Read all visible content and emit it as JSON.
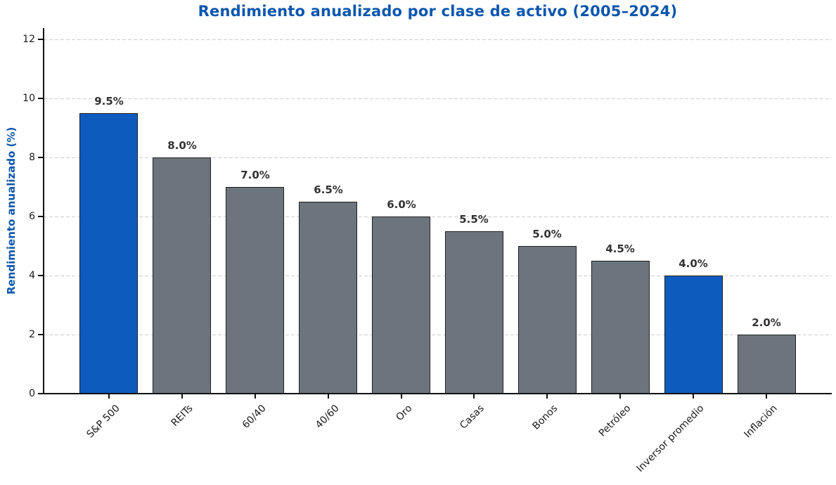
{
  "page": {
    "background": "#ffffff"
  },
  "chart_data": {
    "type": "bar",
    "title": "Rendimiento anualizado por clase de activo (2005–2024)",
    "ylabel": "Rendimiento anualizado (%)",
    "xlabel": "",
    "categories": [
      "S&P 500",
      "REITs",
      "60/40",
      "40/60",
      "Oro",
      "Casas",
      "Bonos",
      "Petróleo",
      "Inversor promedio",
      "Inflación"
    ],
    "values": [
      9.5,
      8.0,
      7.0,
      6.5,
      6.0,
      5.5,
      5.0,
      4.5,
      4.0,
      2.0
    ],
    "bar_labels": [
      "9.5%",
      "8.0%",
      "7.0%",
      "6.5%",
      "6.0%",
      "5.5%",
      "5.0%",
      "4.5%",
      "4.0%",
      "2.0%"
    ],
    "highlight_indices": [
      0,
      8
    ],
    "yticks": [
      0,
      2,
      4,
      6,
      8,
      10,
      12
    ],
    "ytick_labels": [
      "0",
      "2",
      "4",
      "6",
      "8",
      "10",
      "12"
    ],
    "ylim": [
      0,
      12.4
    ],
    "grid": {
      "axis": "y",
      "style": "dashed",
      "color": "#cdcdcd"
    },
    "legend": null,
    "colors": {
      "bar_default": "#6C757D",
      "bar_highlight": "#0E5BBE",
      "bar_edge": "#1F1F1F",
      "title": "#0B56AD",
      "axis_label": "#0B56AD",
      "tick_label": "#1A1A1A",
      "value_label": "#333333",
      "spine": "#111111"
    }
  }
}
